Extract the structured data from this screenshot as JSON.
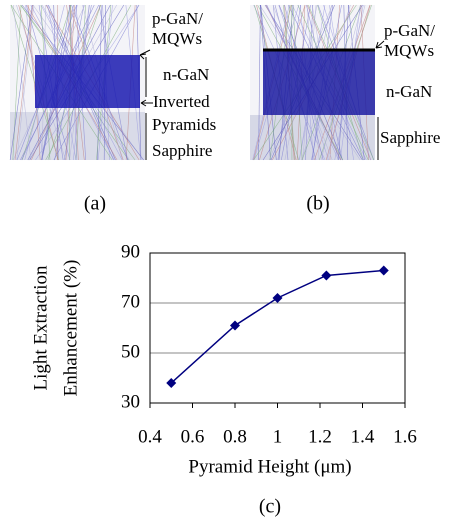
{
  "panels": {
    "a": {
      "labels": [
        "p-GaN/",
        "MQWs",
        "n-GaN",
        "Inverted",
        "Pyramids",
        "Sapphire"
      ],
      "caption": "(a)"
    },
    "b": {
      "labels": [
        "p-GaN/",
        "MQWs",
        "n-GaN",
        "Sapphire"
      ],
      "caption": "(b)"
    },
    "c": {
      "caption": "(c)"
    }
  },
  "chart_data": {
    "type": "line",
    "x_label": "Pyramid Height (μm)",
    "y_label": [
      "Light Extraction",
      "Enhancement (%)"
    ],
    "x": [
      0.5,
      0.8,
      1.0,
      1.23,
      1.5
    ],
    "values": [
      38,
      61,
      72,
      81,
      83
    ],
    "color": "#000080",
    "xlim": [
      0.4,
      1.6
    ],
    "xticks": [
      0.4,
      0.6,
      0.8,
      1,
      1.2,
      1.4,
      1.6
    ],
    "ylim": [
      30,
      90
    ],
    "yticks": [
      30,
      50,
      70,
      90
    ],
    "grid": true
  }
}
